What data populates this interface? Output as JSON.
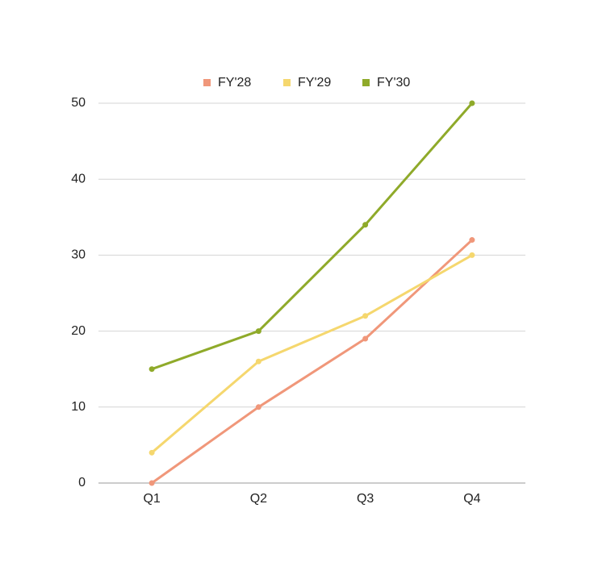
{
  "chart_data": {
    "type": "line",
    "categories": [
      "Q1",
      "Q2",
      "Q3",
      "Q4"
    ],
    "series": [
      {
        "name": "FY'28",
        "color": "#f0977a",
        "values": [
          0,
          10,
          19,
          32
        ]
      },
      {
        "name": "FY'29",
        "color": "#f5d76e",
        "values": [
          4,
          16,
          22,
          30
        ]
      },
      {
        "name": "FY'30",
        "color": "#8faa2a",
        "values": [
          15,
          20,
          34,
          50
        ]
      }
    ],
    "ylim": [
      0,
      50
    ],
    "yticks": [
      0,
      10,
      20,
      30,
      40,
      50
    ],
    "grid": true,
    "legend": "top"
  }
}
